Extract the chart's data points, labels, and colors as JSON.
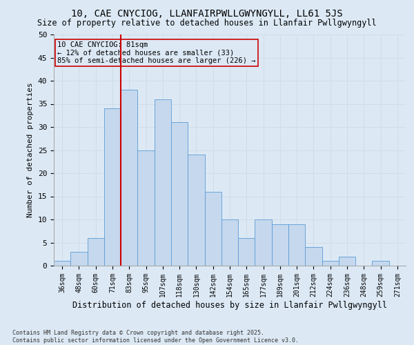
{
  "title": "10, CAE CNYCIOG, LLANFAIRPWLLGWYNGYLL, LL61 5JS",
  "subtitle": "Size of property relative to detached houses in Llanfair Pwllgwyngyll",
  "xlabel": "Distribution of detached houses by size in Llanfair Pwllgwyngyll",
  "ylabel": "Number of detached properties",
  "footer": "Contains HM Land Registry data © Crown copyright and database right 2025.\nContains public sector information licensed under the Open Government Licence v3.0.",
  "bar_labels": [
    "36sqm",
    "48sqm",
    "60sqm",
    "71sqm",
    "83sqm",
    "95sqm",
    "107sqm",
    "118sqm",
    "130sqm",
    "142sqm",
    "154sqm",
    "165sqm",
    "177sqm",
    "189sqm",
    "201sqm",
    "212sqm",
    "224sqm",
    "236sqm",
    "248sqm",
    "259sqm",
    "271sqm"
  ],
  "bar_values": [
    1,
    3,
    6,
    34,
    38,
    25,
    36,
    31,
    24,
    16,
    10,
    6,
    10,
    9,
    9,
    4,
    1,
    2,
    0,
    1,
    0
  ],
  "bar_color": "#c5d8ed",
  "bar_edge_color": "#5b9bd5",
  "property_sqm_label": "10 CAE CNYCIOG: 81sqm",
  "annotation_line1": "← 12% of detached houses are smaller (33)",
  "annotation_line2": "85% of semi-detached houses are larger (226) →",
  "vline_color": "#cc0000",
  "vline_bin_index": 3.5,
  "annotation_box_color": "#cc0000",
  "ylim": [
    0,
    50
  ],
  "yticks": [
    0,
    5,
    10,
    15,
    20,
    25,
    30,
    35,
    40,
    45,
    50
  ],
  "grid_color": "#d0dce8",
  "background_color": "#dce9f5",
  "ann_fontsize": 7.5,
  "title_fontsize": 10,
  "subtitle_fontsize": 8.5,
  "xlabel_fontsize": 8.5,
  "ylabel_fontsize": 8,
  "tick_fontsize": 7,
  "footer_fontsize": 6
}
